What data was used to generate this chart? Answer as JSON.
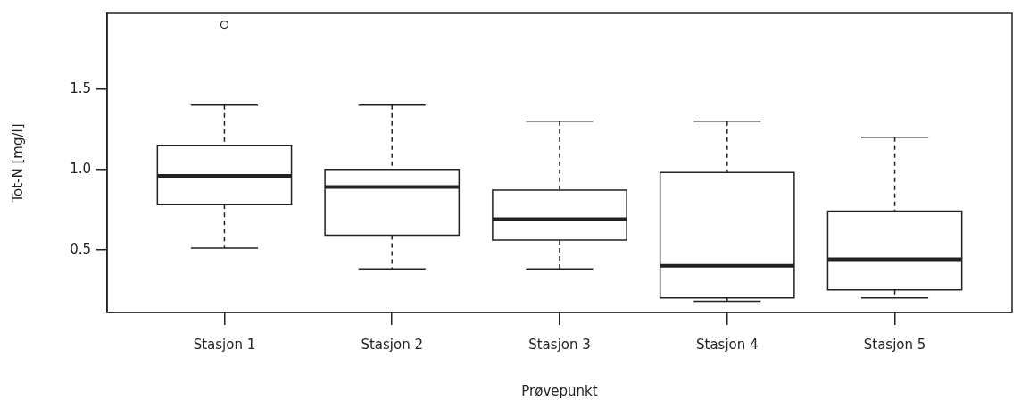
{
  "chart_data": {
    "type": "box",
    "xlabel": "Prøvepunkt",
    "ylabel": "Tot-N [mg/l]",
    "categories": [
      "Stasjon 1",
      "Stasjon 2",
      "Stasjon 3",
      "Stasjon 4",
      "Stasjon 5"
    ],
    "ylim": [
      0.11,
      1.97
    ],
    "yticks": [
      0.5,
      {
        "value": 1,
        "label": "1.0"
      },
      1.5
    ],
    "boxes": [
      {
        "low": 0.51,
        "q1": 0.78,
        "median": 0.96,
        "q3": 1.15,
        "high": 1.4,
        "outliers": [
          1.9
        ]
      },
      {
        "low": 0.38,
        "q1": 0.59,
        "median": 0.89,
        "q3": 1.0,
        "high": 1.4
      },
      {
        "low": 0.38,
        "q1": 0.56,
        "median": 0.69,
        "q3": 0.87,
        "high": 1.3
      },
      {
        "low": 0.18,
        "q1": 0.2,
        "median": 0.4,
        "q3": 0.98,
        "high": 1.3
      },
      {
        "low": 0.2,
        "q1": 0.25,
        "median": 0.44,
        "q3": 0.74,
        "high": 1.2
      }
    ]
  }
}
